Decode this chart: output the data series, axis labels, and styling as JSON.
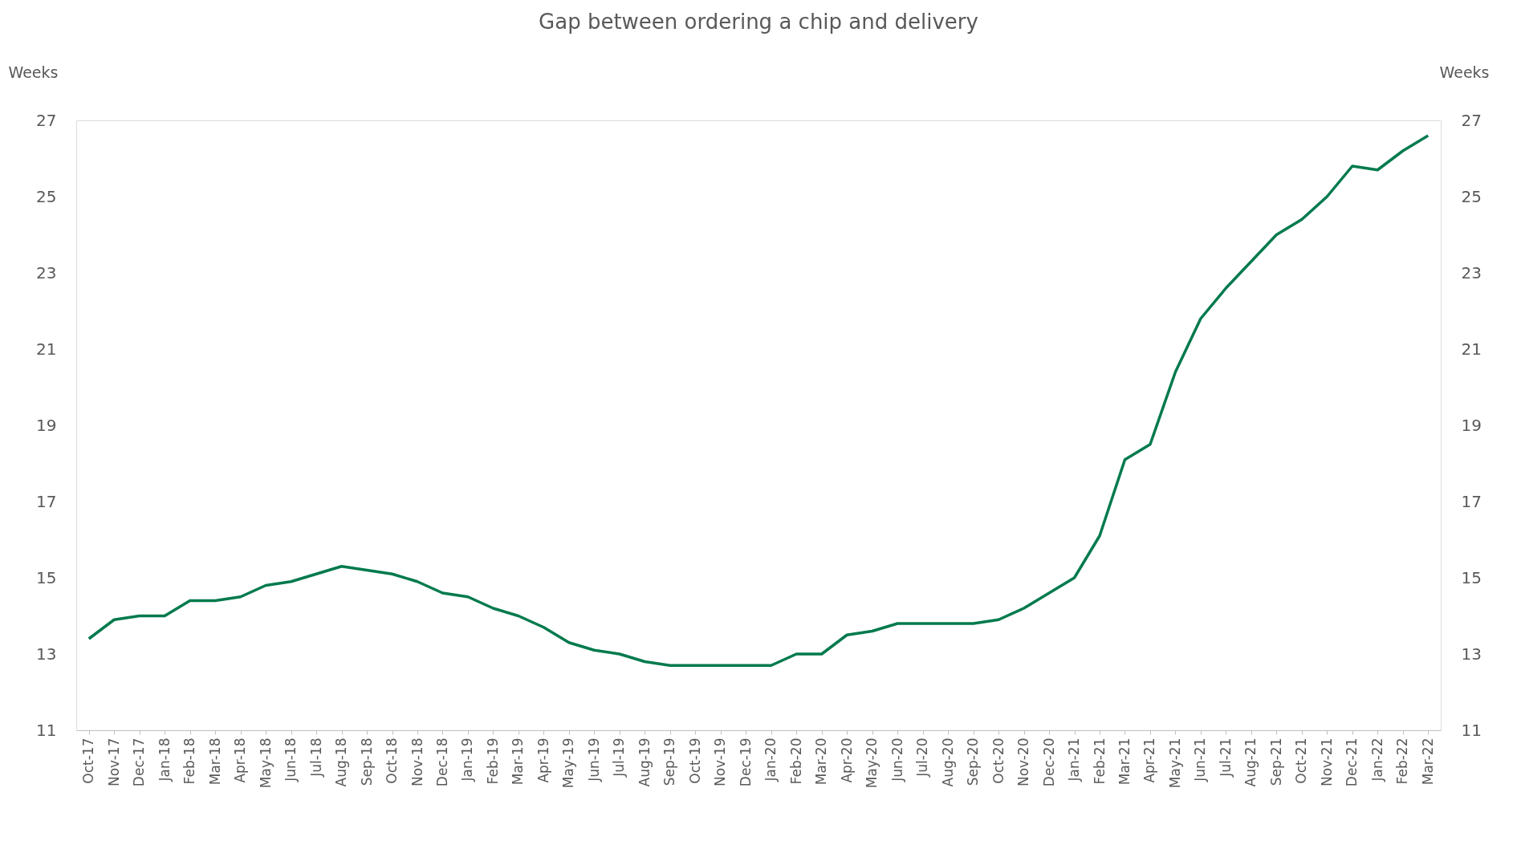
{
  "chart_data": {
    "type": "line",
    "title": "Gap between ordering a chip and delivery",
    "ylabel": "Weeks",
    "y2label": "Weeks",
    "categories": [
      "Oct-17",
      "Nov-17",
      "Dec-17",
      "Jan-18",
      "Feb-18",
      "Mar-18",
      "Apr-18",
      "May-18",
      "Jun-18",
      "Jul-18",
      "Aug-18",
      "Sep-18",
      "Oct-18",
      "Nov-18",
      "Dec-18",
      "Jan-19",
      "Feb-19",
      "Mar-19",
      "Apr-19",
      "May-19",
      "Jun-19",
      "Jul-19",
      "Aug-19",
      "Sep-19",
      "Oct-19",
      "Nov-19",
      "Dec-19",
      "Jan-20",
      "Feb-20",
      "Mar-20",
      "Apr-20",
      "May-20",
      "Jun-20",
      "Jul-20",
      "Aug-20",
      "Sep-20",
      "Oct-20",
      "Nov-20",
      "Dec-20",
      "Jan-21",
      "Feb-21",
      "Mar-21",
      "Apr-21",
      "May-21",
      "Jun-21",
      "Jul-21",
      "Aug-21",
      "Sep-21",
      "Oct-21",
      "Nov-21",
      "Dec-21",
      "Jan-22",
      "Feb-22",
      "Mar-22"
    ],
    "series": [
      {
        "color": "#007a4d",
        "values": [
          13.4,
          13.9,
          14.0,
          14.0,
          14.4,
          14.4,
          14.5,
          14.8,
          14.9,
          15.1,
          15.3,
          15.2,
          15.1,
          14.9,
          14.6,
          14.5,
          14.2,
          14.0,
          13.7,
          13.3,
          13.1,
          13.0,
          12.8,
          12.7,
          12.7,
          12.7,
          12.7,
          12.7,
          13.0,
          13.0,
          13.5,
          13.6,
          13.8,
          13.8,
          13.8,
          13.8,
          13.9,
          14.2,
          14.6,
          15.0,
          16.1,
          18.1,
          18.5,
          20.4,
          21.8,
          22.6,
          23.3,
          24.0,
          24.4,
          25.0,
          25.8,
          25.7,
          26.2,
          26.6
        ]
      }
    ],
    "ylim": [
      11,
      27
    ],
    "yticks": [
      11,
      13,
      15,
      17,
      19,
      21,
      23,
      25,
      27
    ],
    "y2lim": [
      11,
      27
    ],
    "y2ticks": [
      11,
      13,
      15,
      17,
      19,
      21,
      23,
      25,
      27
    ],
    "grid": false,
    "marker": "none",
    "line_style": "solid"
  }
}
